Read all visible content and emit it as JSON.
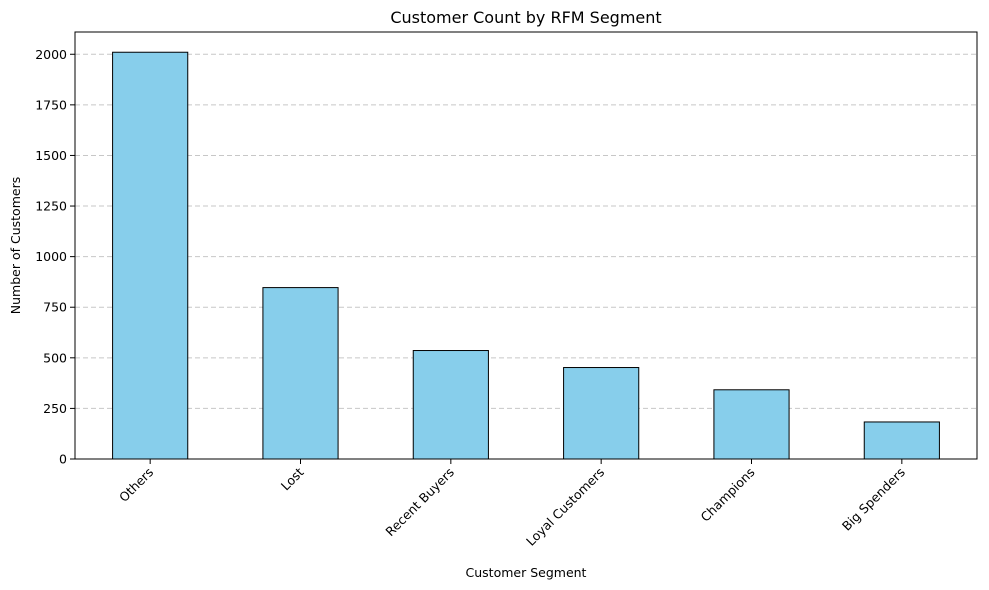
{
  "chart_data": {
    "type": "bar",
    "title": "Customer Count by RFM Segment",
    "xlabel": "Customer Segment",
    "ylabel": "Number of Customers",
    "categories": [
      "Others",
      "Lost",
      "Recent Buyers",
      "Loyal Customers",
      "Champions",
      "Big Spenders"
    ],
    "values": [
      2010,
      847,
      536,
      452,
      342,
      183
    ],
    "ylim": [
      0,
      2110
    ],
    "yticks": [
      0,
      250,
      500,
      750,
      1000,
      1250,
      1500,
      1750,
      2000
    ],
    "grid": "y-dashed",
    "bar_color": "#87CEEB",
    "edge_color": "#000000",
    "xtick_rotation": 45
  }
}
